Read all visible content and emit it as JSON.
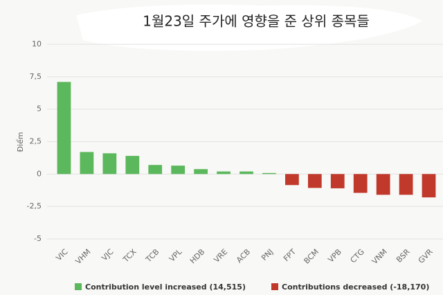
{
  "chart_data": {
    "type": "bar",
    "title": "1월23일 주가에 영향을 준 상위 종목들",
    "y_label": "Điểm",
    "categories": [
      "VIC",
      "VHM",
      "VJC",
      "TCX",
      "TCB",
      "VPL",
      "HDB",
      "VRE",
      "ACB",
      "PNJ",
      "FPT",
      "BCM",
      "VPB",
      "CTG",
      "VNM",
      "BSR",
      "GVR"
    ],
    "series": [
      {
        "name": "Contribution level increased (14,515)",
        "color": "#5cb85c",
        "values": [
          7.1,
          1.7,
          1.6,
          1.4,
          0.7,
          0.65,
          0.38,
          0.2,
          0.2,
          0.08,
          null,
          null,
          null,
          null,
          null,
          null,
          null
        ]
      },
      {
        "name": "Contributions decreased (-18,170)",
        "color": "#c0392b",
        "values": [
          null,
          null,
          null,
          null,
          null,
          null,
          null,
          null,
          null,
          null,
          -0.85,
          -1.07,
          -1.1,
          -1.45,
          -1.6,
          -1.6,
          -1.8
        ]
      }
    ],
    "ylim": [
      -5,
      10
    ],
    "yticks": [
      -5,
      {
        "value": -2.5,
        "label": "-2,5"
      },
      0,
      {
        "value": 2.5,
        "label": "2,5"
      },
      5,
      {
        "value": 7.5,
        "label": "7,5"
      },
      10
    ],
    "grid": true
  }
}
